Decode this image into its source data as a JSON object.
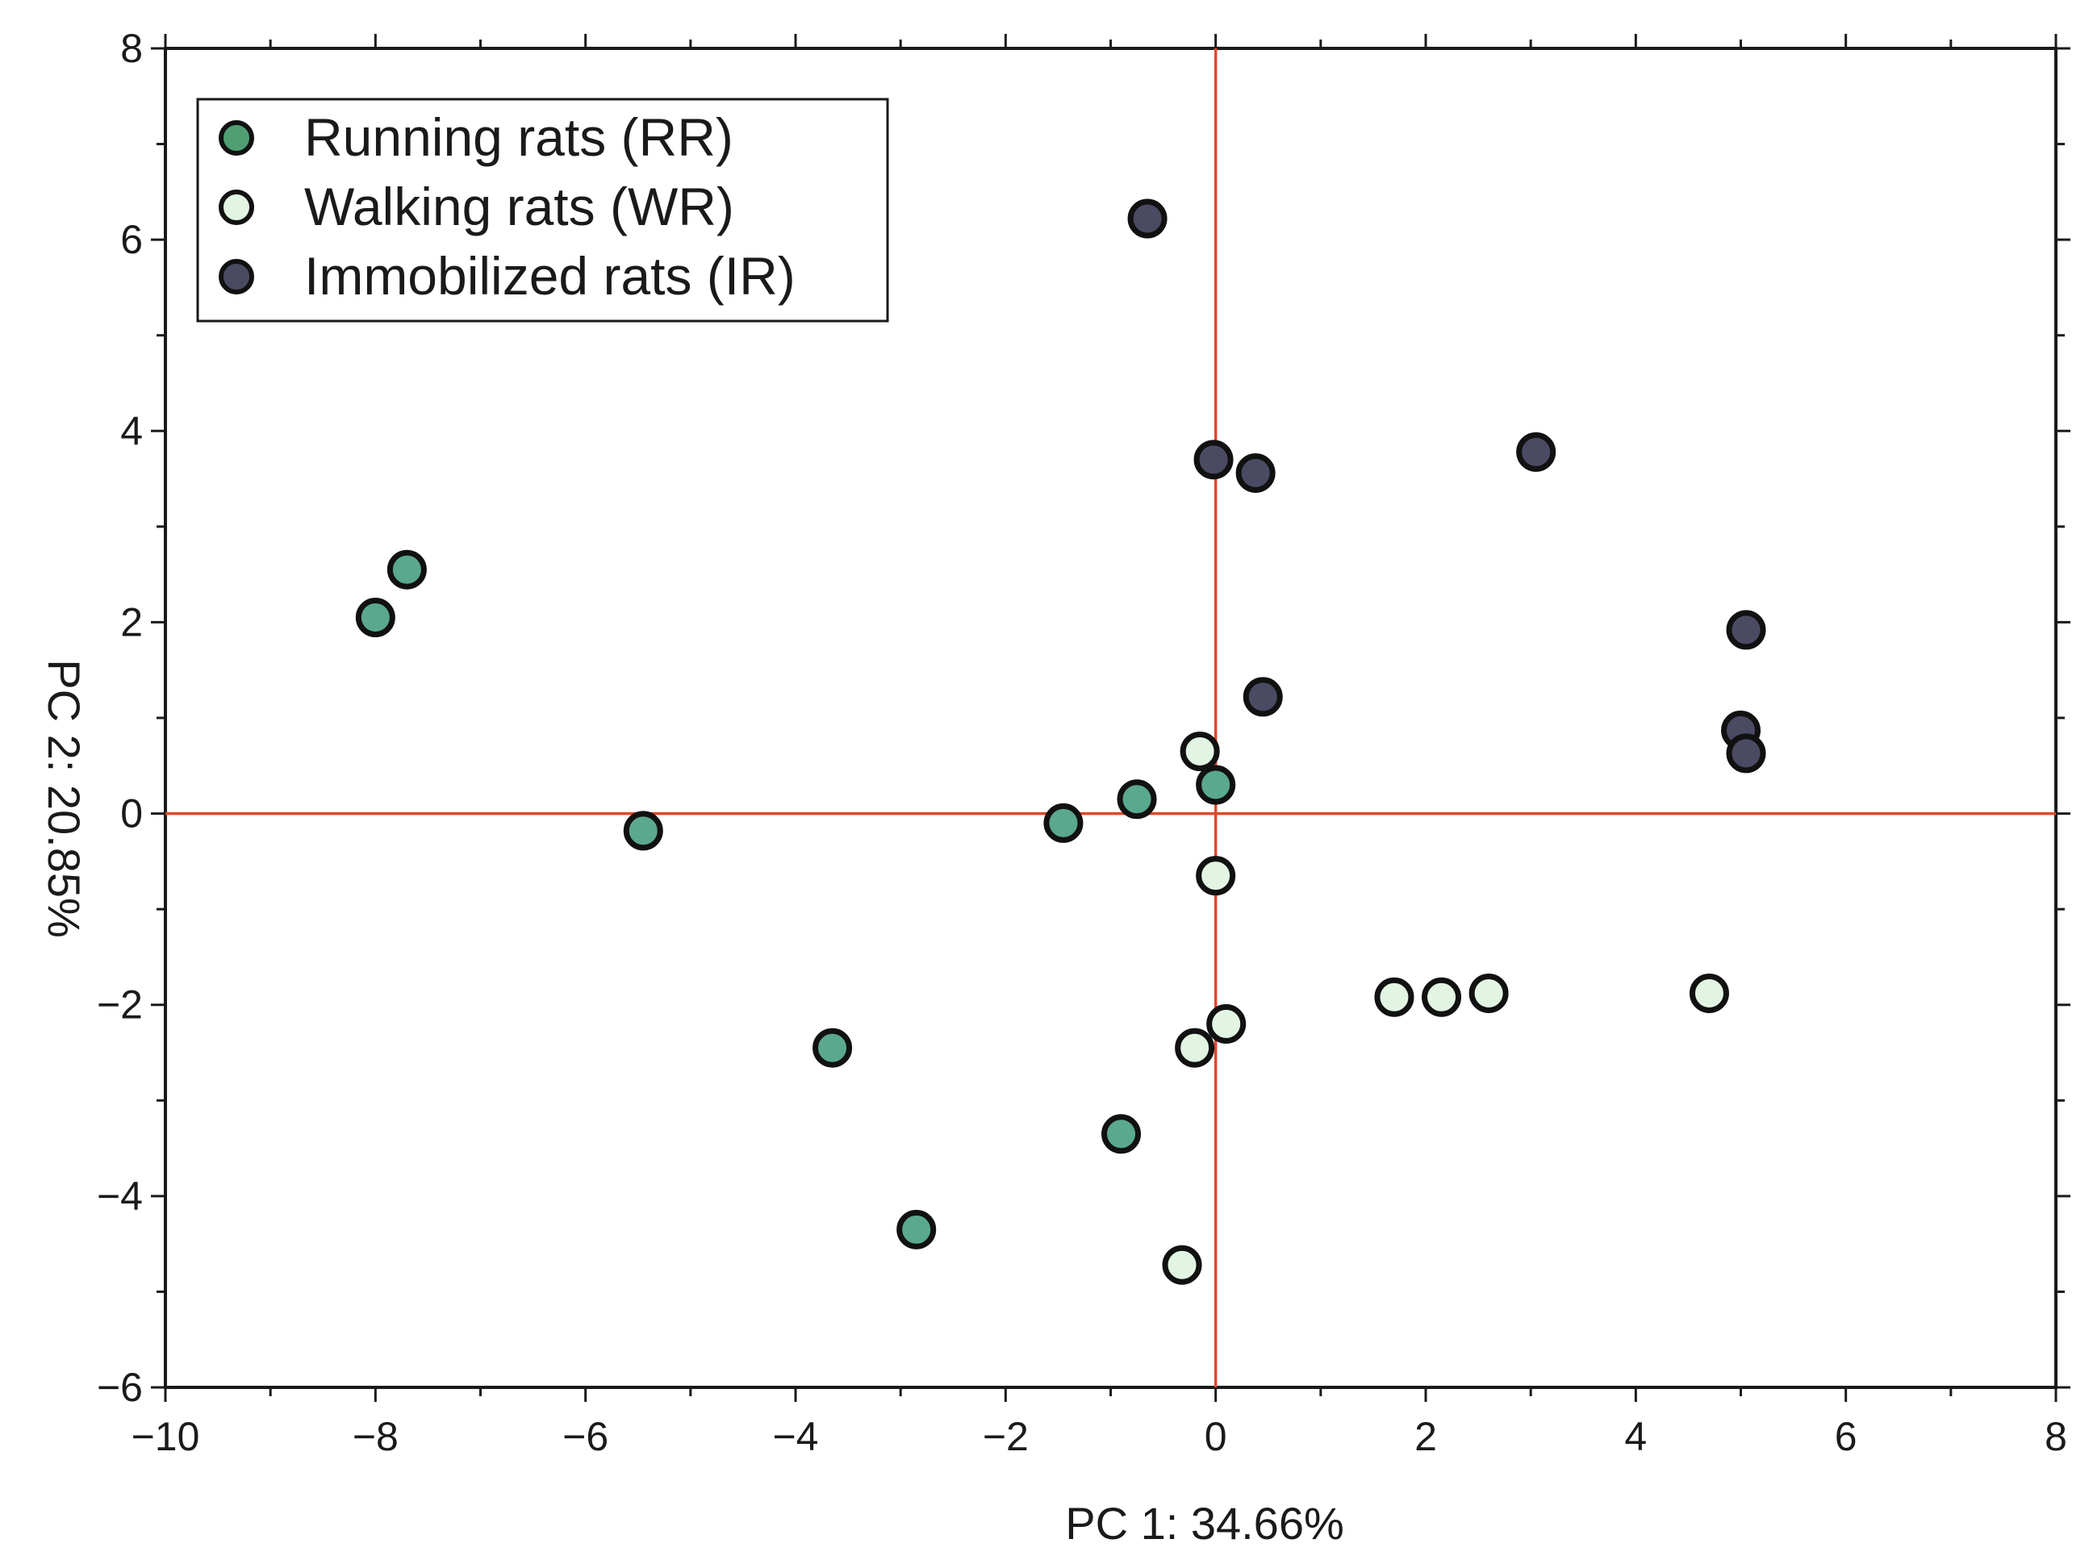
{
  "chart_data": {
    "type": "scatter",
    "title": "",
    "xlabel": "PC 1: 34.66%",
    "ylabel": "PC 2: 20.85%",
    "xlim": [
      -10,
      8
    ],
    "ylim": [
      -6,
      8
    ],
    "xticks": [
      -10,
      -8,
      -6,
      -4,
      -2,
      0,
      2,
      4,
      6,
      8
    ],
    "yticks": [
      -6,
      -4,
      -2,
      0,
      2,
      4,
      6,
      8
    ],
    "xtick_labels": [
      "−10",
      "−8",
      "−6",
      "−4",
      "−2",
      "0",
      "2",
      "4",
      "6",
      "8"
    ],
    "ytick_labels": [
      "−6",
      "−4",
      "−2",
      "0",
      "2",
      "4",
      "6",
      "8"
    ],
    "grid": false,
    "reference_lines": {
      "x": 0,
      "y": 0,
      "color": "#e0482a"
    },
    "legend_position": "top-left",
    "series": [
      {
        "name": "Running rats (RR)",
        "color": "#5aa88e",
        "legend_color": "#4f9f73",
        "points": [
          [
            -7.7,
            2.55
          ],
          [
            -8.0,
            2.05
          ],
          [
            -5.45,
            -0.18
          ],
          [
            -1.45,
            -0.1
          ],
          [
            -0.75,
            0.15
          ],
          [
            0.0,
            0.3
          ],
          [
            -3.65,
            -2.45
          ],
          [
            -0.9,
            -3.35
          ],
          [
            -2.85,
            -4.35
          ]
        ]
      },
      {
        "name": "Walking rats (WR)",
        "color": "#e2f5e2",
        "legend_color": "#e2f5e2",
        "points": [
          [
            -0.15,
            0.65
          ],
          [
            0.0,
            -0.65
          ],
          [
            1.7,
            -1.92
          ],
          [
            2.15,
            -1.92
          ],
          [
            2.6,
            -1.88
          ],
          [
            4.7,
            -1.88
          ],
          [
            0.1,
            -2.2
          ],
          [
            -0.2,
            -2.45
          ],
          [
            -0.32,
            -4.72
          ]
        ]
      },
      {
        "name": "Immobilized rats (IR)",
        "color": "#4a4a62",
        "legend_color": "#4a4a62",
        "points": [
          [
            -0.65,
            6.22
          ],
          [
            -0.02,
            3.7
          ],
          [
            0.38,
            3.56
          ],
          [
            3.05,
            3.78
          ],
          [
            5.05,
            1.92
          ],
          [
            0.45,
            1.22
          ],
          [
            5.0,
            0.87
          ],
          [
            5.05,
            0.63
          ]
        ]
      }
    ]
  }
}
